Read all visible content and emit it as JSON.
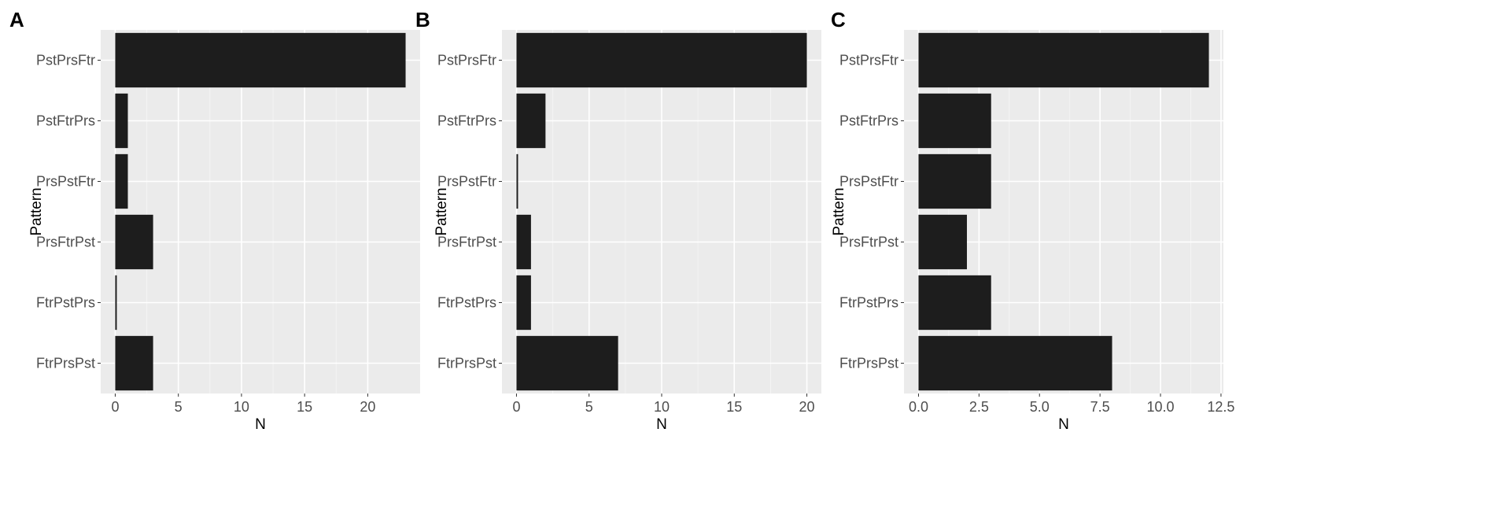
{
  "colors": {
    "panel_background": "#ebebeb",
    "grid_major": "#ffffff",
    "grid_minor": "#f4f4f4",
    "bar_fill": "#1d1d1d",
    "tick_text": "#4d4d4d",
    "tick_mark": "#333333"
  },
  "chart_data": [
    {
      "type": "bar",
      "orientation": "horizontal",
      "panel_tag": "A",
      "categories": [
        "PstPrsFtr",
        "PstFtrPrs",
        "PrsPstFtr",
        "PrsFtrPst",
        "FtrPstPrs",
        "FtrPrsPst"
      ],
      "values": [
        23,
        1,
        1,
        3,
        0,
        3
      ],
      "xlabel": "N",
      "ylabel": "Pattern",
      "xlim": [
        -1.15,
        24.15
      ],
      "xticks": [
        0,
        5,
        10,
        15,
        20
      ],
      "xtick_labels": [
        "0",
        "5",
        "10",
        "15",
        "20"
      ],
      "grid": true
    },
    {
      "type": "bar",
      "orientation": "horizontal",
      "panel_tag": "B",
      "categories": [
        "PstPrsFtr",
        "PstFtrPrs",
        "PrsPstFtr",
        "PrsFtrPst",
        "FtrPstPrs",
        "FtrPrsPst"
      ],
      "values": [
        20,
        2,
        0,
        1,
        1,
        7
      ],
      "xlabel": "N",
      "ylabel": "Pattern",
      "xlim": [
        -1,
        21
      ],
      "xticks": [
        0,
        5,
        10,
        15,
        20
      ],
      "xtick_labels": [
        "0",
        "5",
        "10",
        "15",
        "20"
      ],
      "grid": true
    },
    {
      "type": "bar",
      "orientation": "horizontal",
      "panel_tag": "C",
      "categories": [
        "PstPrsFtr",
        "PstFtrPrs",
        "PrsPstFtr",
        "PrsFtrPst",
        "FtrPstPrs",
        "FtrPrsPst"
      ],
      "values": [
        12,
        3,
        3,
        2,
        3,
        8
      ],
      "xlabel": "N",
      "ylabel": "Pattern",
      "xlim": [
        -0.6,
        12.6
      ],
      "xticks": [
        0,
        2.5,
        5,
        7.5,
        10,
        12.5
      ],
      "xtick_labels": [
        "0.0",
        "2.5",
        "5.0",
        "7.5",
        "10.0",
        "12.5"
      ],
      "grid": true
    }
  ]
}
